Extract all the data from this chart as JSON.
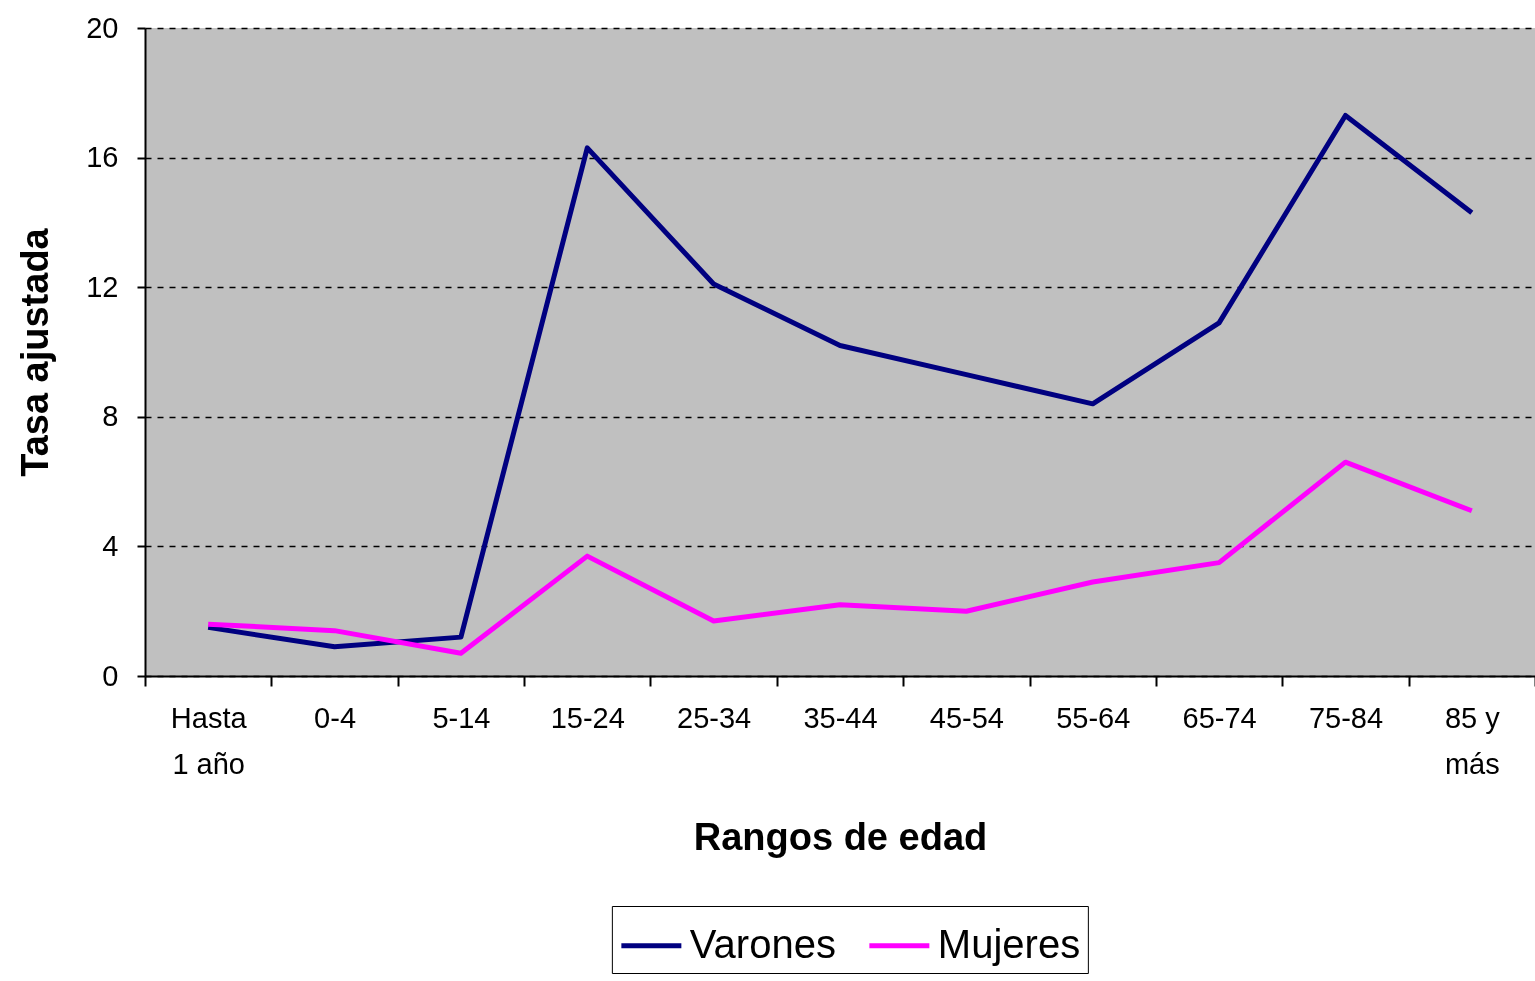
{
  "chart_data": {
    "type": "line",
    "categories": [
      "Hasta 1 año",
      "0-4",
      "5-14",
      "15-24",
      "25-34",
      "35-44",
      "45-54",
      "55-64",
      "65-74",
      "75-84",
      "85 y más"
    ],
    "series": [
      {
        "name": "Varones",
        "color": "#000080",
        "values": [
          1.5,
          0.9,
          1.2,
          16.3,
          12.1,
          10.2,
          9.3,
          8.4,
          10.9,
          17.3,
          14.3
        ]
      },
      {
        "name": "Mujeres",
        "color": "#ff00ff",
        "values": [
          1.6,
          1.4,
          0.7,
          3.7,
          1.7,
          2.2,
          2.0,
          2.9,
          3.5,
          6.6,
          5.1
        ]
      }
    ],
    "xlabel": "Rangos de edad",
    "ylabel": "Tasa ajustada",
    "ylim": [
      0,
      20
    ],
    "yticks": [
      0,
      4,
      8,
      12,
      16,
      20
    ],
    "grid": "y",
    "legend": "bottom"
  }
}
